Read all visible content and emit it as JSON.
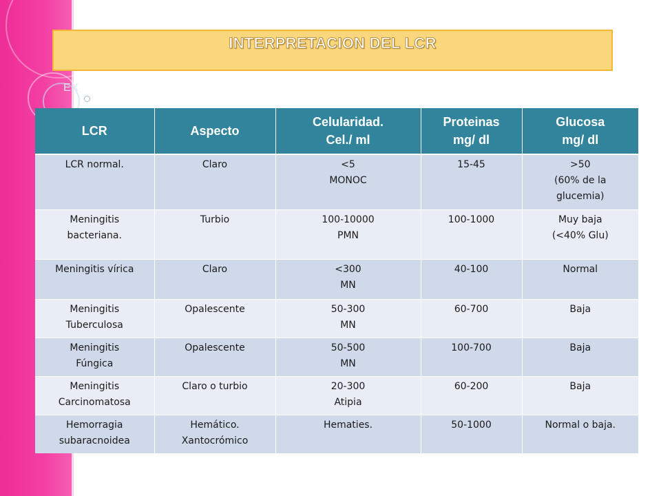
{
  "slide": {
    "title": "INTERPRETACION DEL LCR",
    "partial_text": "EX"
  },
  "table": {
    "headers": [
      [
        "LCR"
      ],
      [
        "Aspecto"
      ],
      [
        "Celularidad.",
        "Cel./ ml"
      ],
      [
        "Proteinas",
        "mg/ dl"
      ],
      [
        "Glucosa",
        "mg/ dl"
      ]
    ],
    "rows": [
      [
        [
          "LCR normal."
        ],
        [
          "Claro"
        ],
        [
          "<5",
          "MONOC"
        ],
        [
          "15-45"
        ],
        [
          ">50",
          "(60% de la",
          "glucemia)"
        ]
      ],
      [
        [
          "Meningitis",
          "bacteriana."
        ],
        [
          "Turbio"
        ],
        [
          "100-10000",
          "PMN"
        ],
        [
          "100-1000"
        ],
        [
          "Muy baja",
          "(<40% Glu)"
        ]
      ],
      [
        [
          "Meningitis vírica"
        ],
        [
          "Claro"
        ],
        [
          "<300",
          "MN"
        ],
        [
          "40-100"
        ],
        [
          "Normal"
        ]
      ],
      [
        [
          "Meningitis",
          "Tuberculosa"
        ],
        [
          "Opalescente"
        ],
        [
          "50-300",
          "MN"
        ],
        [
          "60-700"
        ],
        [
          "Baja"
        ]
      ],
      [
        [
          "Meningitis",
          "Fúngica"
        ],
        [
          "Opalescente"
        ],
        [
          "50-500",
          "MN"
        ],
        [
          "100-700"
        ],
        [
          "Baja"
        ]
      ],
      [
        [
          "Meningitis",
          "Carcinomatosa"
        ],
        [
          "Claro o turbio"
        ],
        [
          "20-300",
          "Atipia"
        ],
        [
          "60-200"
        ],
        [
          "Baja"
        ]
      ],
      [
        [
          "Hemorragia",
          "subaracnoidea"
        ],
        [
          "Hemático.",
          "Xantocrómico"
        ],
        [
          "Hematies."
        ],
        [
          "50-1000"
        ],
        [
          "Normal o baja."
        ]
      ]
    ]
  }
}
